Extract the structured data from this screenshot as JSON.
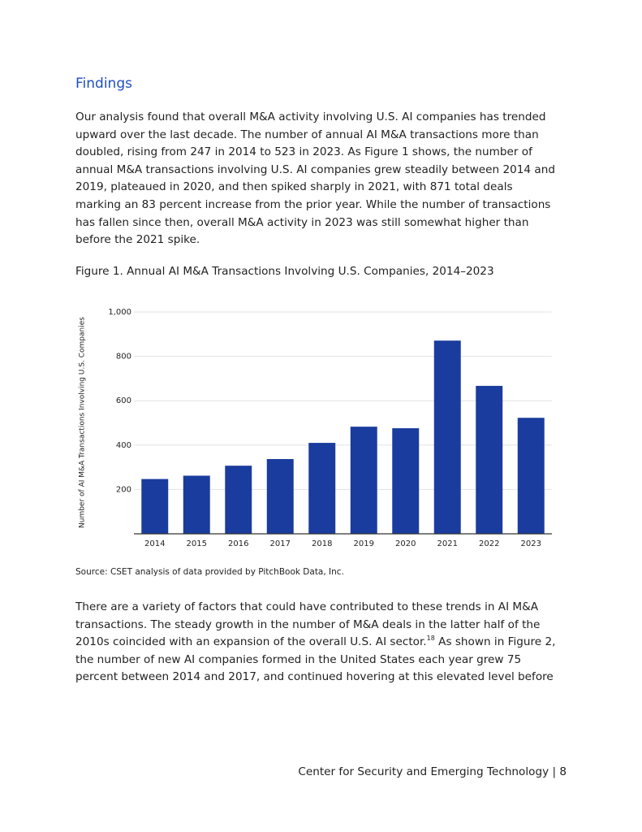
{
  "heading": "Findings",
  "paragraph_1": [
    "Our analysis found that overall M&A activity involving U.S. AI companies has trended",
    "upward over the last decade. The number of annual AI M&A transactions more than",
    "doubled, rising from 247 in 2014 to 523 in 2023. As Figure 1 shows, the number of",
    "annual M&A transactions involving U.S. AI companies grew steadily between 2014 and",
    "2019, plateaued in 2020, and then spiked sharply in 2021, with 871 total deals",
    "marking an 83 percent increase from the prior year. While the number of transactions",
    "has fallen since then, overall M&A activity in 2023 was still somewhat higher than",
    "before the 2021 spike."
  ],
  "figure_caption": "Figure 1. Annual AI M&A Transactions Involving U.S. Companies, 2014–2023",
  "chart_data": {
    "type": "bar",
    "y_label": "Number of AI M&A Transactions Involving U.S. Companies",
    "categories": [
      "2014",
      "2015",
      "2016",
      "2017",
      "2018",
      "2019",
      "2020",
      "2021",
      "2022",
      "2023"
    ],
    "values": [
      247,
      262,
      307,
      337,
      410,
      483,
      476,
      871,
      667,
      523
    ],
    "color": "#1a3c9e",
    "ylim": [
      0,
      1000
    ],
    "yticks": [
      200,
      400,
      600,
      800,
      {
        "value": 1000,
        "label": "1,000"
      }
    ],
    "grid": true
  },
  "source": "Source: CSET analysis of data provided by PitchBook Data, Inc.",
  "paragraph_2": {
    "lines_before": [
      "There are a variety of factors that could have contributed to these trends in AI M&A",
      "transactions. The steady growth in the number of M&A deals in the latter half of the"
    ],
    "line_with_note": {
      "before": "2010s coincided with an expansion of the overall U.S. AI sector.",
      "note": "18",
      "after": " As shown in Figure 2,"
    },
    "lines_after": [
      "the number of new AI companies formed in the United States each year grew 75",
      "percent between 2014 and 2017, and continued hovering at this elevated level before"
    ]
  },
  "footer": "Center for Security and Emerging Technology | 8"
}
